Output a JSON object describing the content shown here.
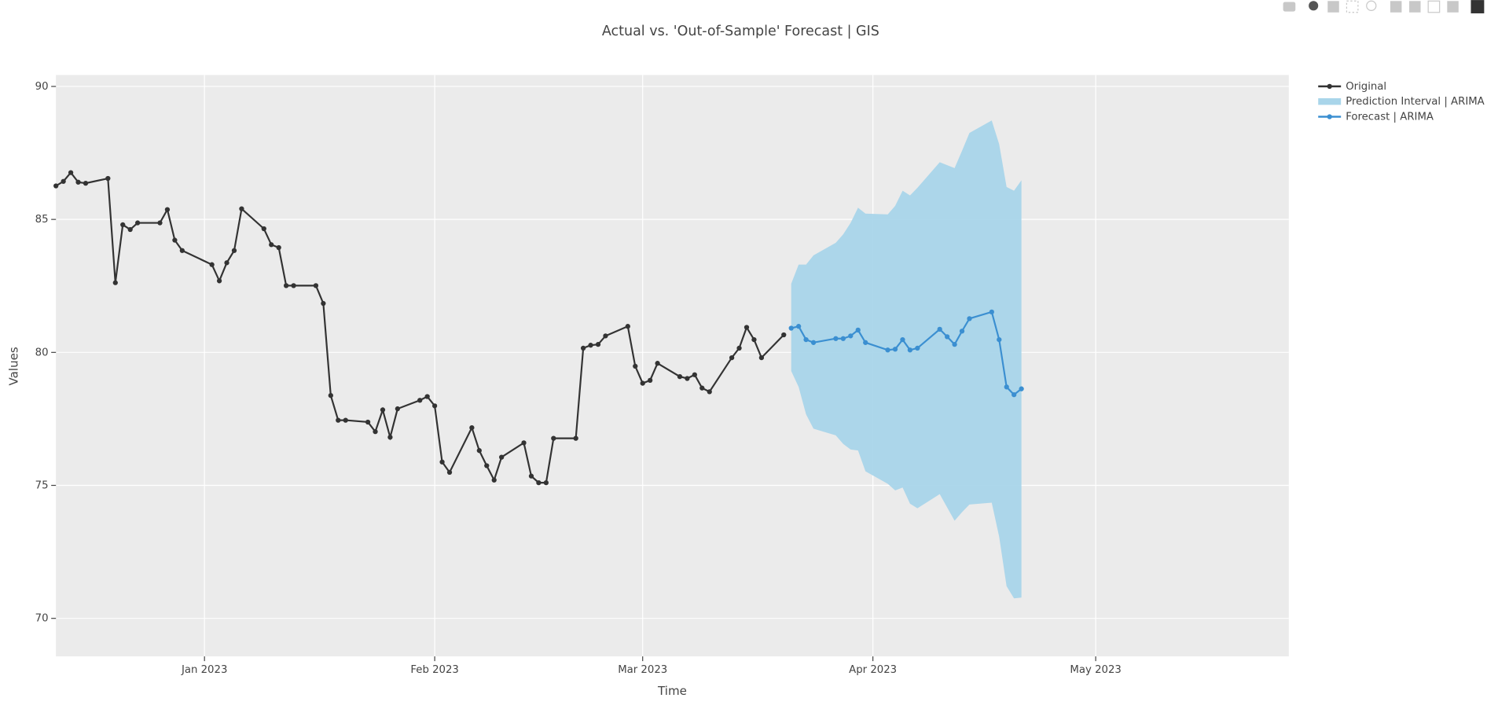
{
  "chart_data": {
    "type": "line",
    "title": "Actual vs. 'Out-of-Sample' Forecast | GIS",
    "xlabel": "Time",
    "ylabel": "Values",
    "xlim": [
      "2022-12-12",
      "2023-05-27"
    ],
    "xticks": [
      {
        "value": "2023-01-01",
        "label": "Jan 2023"
      },
      {
        "value": "2023-02-01",
        "label": "Feb 2023"
      },
      {
        "value": "2023-03-01",
        "label": "Mar 2023"
      },
      {
        "value": "2023-04-01",
        "label": "Apr 2023"
      },
      {
        "value": "2023-05-01",
        "label": "May 2023"
      }
    ],
    "ylim": [
      68.57,
      90.43
    ],
    "yticks": [
      70,
      75,
      80,
      85,
      90
    ],
    "grid": true,
    "series": [
      {
        "name": "Original",
        "color": "#333333",
        "x": [
          "2022-12-12",
          "2022-12-13",
          "2022-12-14",
          "2022-12-15",
          "2022-12-16",
          "2022-12-19",
          "2022-12-20",
          "2022-12-21",
          "2022-12-22",
          "2022-12-23",
          "2022-12-26",
          "2022-12-27",
          "2022-12-28",
          "2022-12-29",
          "2023-01-02",
          "2023-01-03",
          "2023-01-04",
          "2023-01-05",
          "2023-01-06",
          "2023-01-09",
          "2023-01-10",
          "2023-01-11",
          "2023-01-12",
          "2023-01-13",
          "2023-01-16",
          "2023-01-17",
          "2023-01-18",
          "2023-01-19",
          "2023-01-20",
          "2023-01-23",
          "2023-01-24",
          "2023-01-25",
          "2023-01-26",
          "2023-01-27",
          "2023-01-30",
          "2023-01-31",
          "2023-02-01",
          "2023-02-02",
          "2023-02-03",
          "2023-02-06",
          "2023-02-07",
          "2023-02-08",
          "2023-02-09",
          "2023-02-10",
          "2023-02-13",
          "2023-02-14",
          "2023-02-15",
          "2023-02-16",
          "2023-02-17",
          "2023-02-20",
          "2023-02-21",
          "2023-02-22",
          "2023-02-23",
          "2023-02-24",
          "2023-02-27",
          "2023-02-28",
          "2023-03-01",
          "2023-03-02",
          "2023-03-03",
          "2023-03-06",
          "2023-03-07",
          "2023-03-08",
          "2023-03-09",
          "2023-03-10",
          "2023-03-13",
          "2023-03-14",
          "2023-03-15",
          "2023-03-16",
          "2023-03-17",
          "2023-03-20"
        ],
        "values": [
          86.26,
          86.43,
          86.76,
          86.4,
          86.36,
          86.54,
          82.62,
          84.8,
          84.62,
          84.87,
          84.87,
          85.37,
          84.22,
          83.83,
          83.3,
          82.69,
          83.37,
          83.83,
          85.4,
          84.65,
          84.05,
          83.94,
          82.51,
          82.51,
          82.51,
          81.84,
          78.38,
          77.45,
          77.45,
          77.38,
          77.02,
          77.84,
          76.81,
          77.88,
          78.2,
          78.34,
          77.99,
          75.88,
          75.49,
          77.17,
          76.31,
          75.74,
          75.2,
          76.06,
          76.6,
          75.35,
          75.1,
          75.1,
          76.77,
          76.77,
          80.16,
          80.27,
          80.3,
          80.62,
          80.98,
          79.48,
          78.84,
          78.95,
          79.59,
          79.09,
          79.02,
          79.16,
          78.66,
          78.52,
          79.8,
          80.16,
          80.94,
          80.48,
          79.8,
          80.66
        ]
      },
      {
        "name": "Prediction Interval | ARIMA",
        "color": "#a9d5ea",
        "x": [
          "2023-03-21",
          "2023-03-22",
          "2023-03-23",
          "2023-03-24",
          "2023-03-27",
          "2023-03-28",
          "2023-03-29",
          "2023-03-30",
          "2023-03-31",
          "2023-04-03",
          "2023-04-04",
          "2023-04-05",
          "2023-04-06",
          "2023-04-07",
          "2023-04-10",
          "2023-04-11",
          "2023-04-12",
          "2023-04-13",
          "2023-04-14",
          "2023-04-17",
          "2023-04-18",
          "2023-04-19",
          "2023-04-20",
          "2023-04-21"
        ],
        "upper": [
          82.58,
          83.3,
          83.3,
          83.65,
          84.12,
          84.44,
          84.87,
          85.44,
          85.22,
          85.19,
          85.51,
          86.08,
          85.9,
          86.19,
          87.15,
          87.04,
          86.93,
          87.58,
          88.25,
          88.72,
          87.83,
          86.22,
          86.08,
          86.47
        ],
        "lower": [
          79.3,
          78.7,
          77.67,
          77.13,
          76.88,
          76.56,
          76.35,
          76.31,
          75.53,
          75.06,
          74.81,
          74.92,
          74.31,
          74.14,
          74.67,
          74.17,
          73.67,
          73.99,
          74.28,
          74.35,
          73.07,
          71.21,
          70.75,
          70.78
        ]
      },
      {
        "name": "Forecast | ARIMA",
        "color": "#3b8fd1",
        "x": [
          "2023-03-21",
          "2023-03-22",
          "2023-03-23",
          "2023-03-24",
          "2023-03-27",
          "2023-03-28",
          "2023-03-29",
          "2023-03-30",
          "2023-03-31",
          "2023-04-03",
          "2023-04-04",
          "2023-04-05",
          "2023-04-06",
          "2023-04-07",
          "2023-04-10",
          "2023-04-11",
          "2023-04-12",
          "2023-04-13",
          "2023-04-14",
          "2023-04-17",
          "2023-04-18",
          "2023-04-19",
          "2023-04-20",
          "2023-04-21"
        ],
        "values": [
          80.91,
          80.98,
          80.48,
          80.37,
          80.52,
          80.52,
          80.62,
          80.84,
          80.37,
          80.09,
          80.12,
          80.48,
          80.09,
          80.16,
          80.87,
          80.59,
          80.3,
          80.8,
          81.27,
          81.52,
          80.48,
          78.7,
          78.41,
          78.63
        ]
      }
    ]
  }
}
